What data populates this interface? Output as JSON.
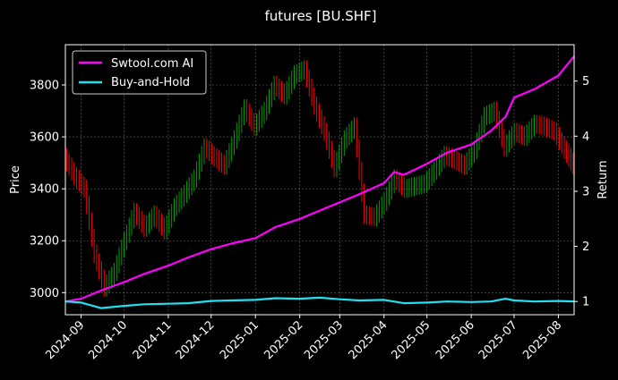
{
  "chart_data": {
    "type": "line",
    "title": "futures [BU.SHF]",
    "xlabel": "",
    "ylabel": "Price",
    "y2label": "Return",
    "x_range": [
      "2024-08-21",
      "2025-08-12"
    ],
    "ylim": [
      2915,
      3955
    ],
    "y2lim": [
      0.76,
      5.66
    ],
    "y_ticks": [
      3000,
      3200,
      3400,
      3600,
      3800
    ],
    "y2_ticks": [
      1,
      2,
      3,
      4,
      5
    ],
    "x_ticks": [
      "2024-09",
      "2024-10",
      "2024-11",
      "2024-12",
      "2025-01",
      "2025-02",
      "2025-03",
      "2025-04",
      "2025-05",
      "2025-06",
      "2025-07",
      "2025-08"
    ],
    "x_tick_dates": [
      "2024-09-01",
      "2024-10-01",
      "2024-11-01",
      "2024-12-01",
      "2025-01-01",
      "2025-02-01",
      "2025-03-01",
      "2025-04-01",
      "2025-05-01",
      "2025-06-01",
      "2025-07-01",
      "2025-08-01"
    ],
    "grid": true,
    "legend_position": "top-left",
    "colors": {
      "up_candle": "#00a000",
      "down_candle": "#ff0000",
      "ai_line": "#ff00ff",
      "buy_hold_line": "#22e0f0",
      "grid": "#666666"
    },
    "price_series": {
      "name": "",
      "x": [
        "2024-08-21",
        "2024-08-28",
        "2024-09-04",
        "2024-09-11",
        "2024-09-18",
        "2024-09-25",
        "2024-10-02",
        "2024-10-09",
        "2024-10-16",
        "2024-10-23",
        "2024-10-30",
        "2024-11-06",
        "2024-11-13",
        "2024-11-20",
        "2024-11-27",
        "2024-12-04",
        "2024-12-11",
        "2024-12-18",
        "2024-12-25",
        "2025-01-01",
        "2025-01-08",
        "2025-01-15",
        "2025-01-22",
        "2025-01-29",
        "2025-02-05",
        "2025-02-12",
        "2025-02-19",
        "2025-02-26",
        "2025-03-05",
        "2025-03-12",
        "2025-03-19",
        "2025-03-26",
        "2025-04-02",
        "2025-04-09",
        "2025-04-16",
        "2025-04-23",
        "2025-04-30",
        "2025-05-07",
        "2025-05-14",
        "2025-05-21",
        "2025-05-28",
        "2025-06-04",
        "2025-06-11",
        "2025-06-18",
        "2025-06-25",
        "2025-07-02",
        "2025-07-09",
        "2025-07-16",
        "2025-07-23",
        "2025-07-30",
        "2025-08-06",
        "2025-08-12"
      ],
      "values": [
        3520,
        3450,
        3400,
        3150,
        3020,
        3080,
        3200,
        3310,
        3250,
        3300,
        3240,
        3330,
        3380,
        3440,
        3560,
        3520,
        3490,
        3590,
        3710,
        3640,
        3700,
        3800,
        3760,
        3840,
        3860,
        3720,
        3620,
        3480,
        3590,
        3640,
        3300,
        3290,
        3350,
        3440,
        3400,
        3410,
        3420,
        3470,
        3530,
        3510,
        3490,
        3550,
        3680,
        3700,
        3560,
        3620,
        3600,
        3650,
        3640,
        3620,
        3550,
        3490
      ]
    },
    "series": [
      {
        "name": "Swtool.com AI",
        "x": [
          "2024-08-21",
          "2024-09-01",
          "2024-09-15",
          "2024-10-01",
          "2024-10-15",
          "2024-11-01",
          "2024-11-15",
          "2024-12-01",
          "2024-12-15",
          "2025-01-01",
          "2025-01-15",
          "2025-02-01",
          "2025-02-15",
          "2025-03-01",
          "2025-03-15",
          "2025-04-01",
          "2025-04-08",
          "2025-04-15",
          "2025-05-01",
          "2025-05-15",
          "2025-06-01",
          "2025-06-15",
          "2025-06-25",
          "2025-07-01",
          "2025-07-15",
          "2025-08-01",
          "2025-08-12"
        ],
        "values": [
          1.0,
          1.05,
          1.2,
          1.35,
          1.5,
          1.65,
          1.8,
          1.95,
          2.05,
          2.15,
          2.35,
          2.5,
          2.65,
          2.8,
          2.95,
          3.15,
          3.35,
          3.3,
          3.5,
          3.7,
          3.85,
          4.1,
          4.35,
          4.7,
          4.85,
          5.1,
          5.45
        ]
      },
      {
        "name": "Buy-and-Hold",
        "x": [
          "2024-08-21",
          "2024-09-01",
          "2024-09-15",
          "2024-10-01",
          "2024-10-15",
          "2024-11-01",
          "2024-11-15",
          "2024-12-01",
          "2024-12-15",
          "2025-01-01",
          "2025-01-15",
          "2025-02-01",
          "2025-02-15",
          "2025-03-01",
          "2025-03-15",
          "2025-04-01",
          "2025-04-15",
          "2025-05-01",
          "2025-05-15",
          "2025-06-01",
          "2025-06-15",
          "2025-06-25",
          "2025-07-01",
          "2025-07-15",
          "2025-08-01",
          "2025-08-12"
        ],
        "values": [
          1.0,
          0.98,
          0.88,
          0.92,
          0.95,
          0.96,
          0.97,
          1.01,
          1.02,
          1.03,
          1.06,
          1.05,
          1.07,
          1.04,
          1.02,
          1.03,
          0.97,
          0.98,
          1.0,
          0.99,
          1.0,
          1.05,
          1.02,
          1.0,
          1.01,
          1.0
        ]
      }
    ]
  }
}
